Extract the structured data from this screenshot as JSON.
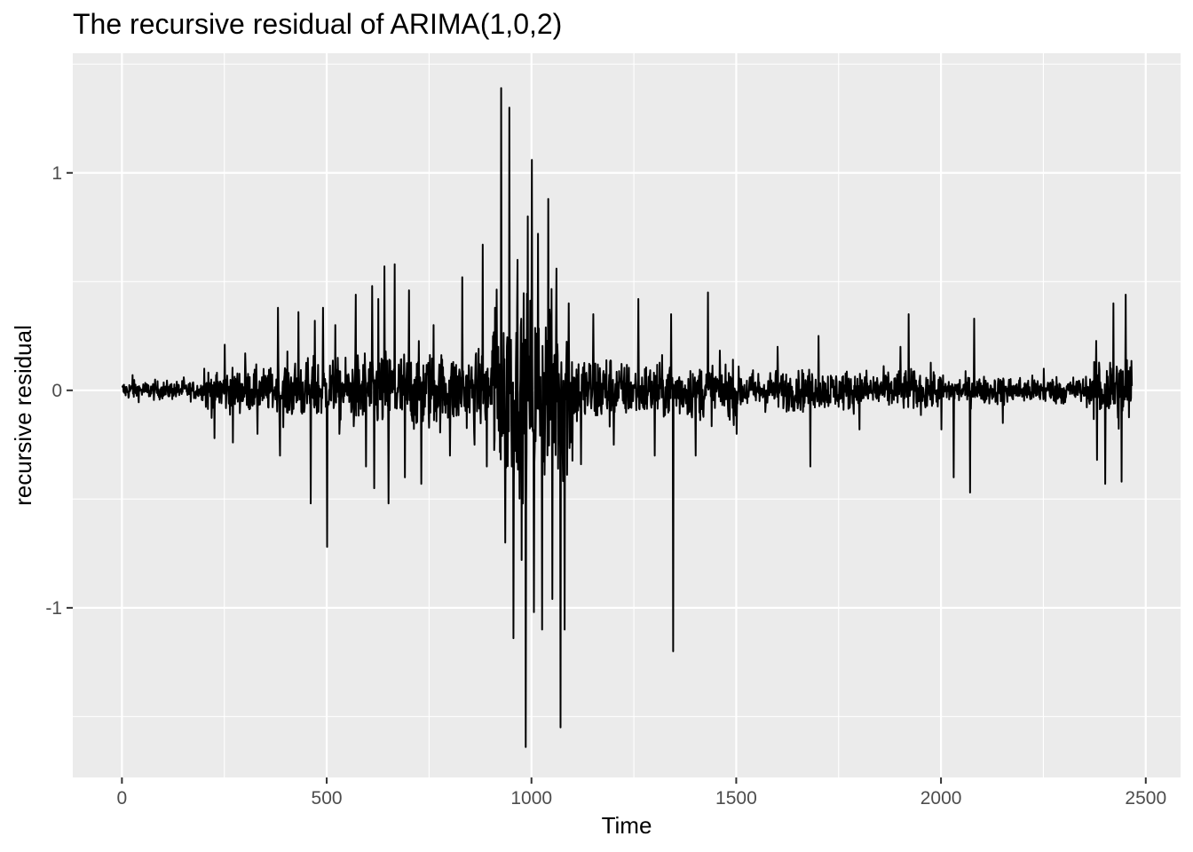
{
  "chart_data": {
    "type": "line",
    "title": "The recursive residual of ARIMA(1,0,2)",
    "xlabel": "Time",
    "ylabel": "recursive residual",
    "xlim": [
      -120,
      2585
    ],
    "ylim": [
      -1.78,
      1.55
    ],
    "x_ticks": [
      0,
      500,
      1000,
      1500,
      2000,
      2500
    ],
    "x_tick_labels": [
      "0",
      "500",
      "1000",
      "1500",
      "2000",
      "2500"
    ],
    "y_ticks": [
      -1,
      0,
      1
    ],
    "y_tick_labels": [
      "-1",
      "0",
      "1"
    ],
    "grid": true,
    "background": "#ebebeb",
    "grid_color": "#ffffff",
    "line_color": "#000000",
    "n_points": 2466,
    "series": [
      {
        "description": "noisy residual series centered at 0; values below are visible extreme spikes (x, y)",
        "spikes": [
          [
            25,
            0.07
          ],
          [
            80,
            0.05
          ],
          [
            150,
            0.06
          ],
          [
            200,
            0.1
          ],
          [
            225,
            -0.22
          ],
          [
            250,
            0.21
          ],
          [
            270,
            -0.24
          ],
          [
            300,
            0.17
          ],
          [
            330,
            -0.2
          ],
          [
            380,
            0.38
          ],
          [
            385,
            -0.3
          ],
          [
            430,
            0.36
          ],
          [
            460,
            -0.52
          ],
          [
            470,
            0.32
          ],
          [
            490,
            0.38
          ],
          [
            500,
            -0.72
          ],
          [
            520,
            0.3
          ],
          [
            530,
            -0.2
          ],
          [
            570,
            0.44
          ],
          [
            595,
            -0.35
          ],
          [
            610,
            0.48
          ],
          [
            615,
            -0.45
          ],
          [
            625,
            0.42
          ],
          [
            640,
            0.57
          ],
          [
            650,
            -0.52
          ],
          [
            665,
            0.58
          ],
          [
            690,
            -0.4
          ],
          [
            700,
            0.46
          ],
          [
            730,
            -0.43
          ],
          [
            760,
            0.3
          ],
          [
            800,
            -0.3
          ],
          [
            830,
            0.52
          ],
          [
            860,
            -0.25
          ],
          [
            880,
            0.67
          ],
          [
            890,
            -0.35
          ],
          [
            910,
            0.38
          ],
          [
            925,
            1.39
          ],
          [
            935,
            -0.7
          ],
          [
            945,
            1.3
          ],
          [
            955,
            -1.14
          ],
          [
            965,
            0.6
          ],
          [
            975,
            -0.78
          ],
          [
            985,
            -1.64
          ],
          [
            990,
            0.8
          ],
          [
            1000,
            1.06
          ],
          [
            1005,
            -1.02
          ],
          [
            1015,
            0.72
          ],
          [
            1025,
            -1.1
          ],
          [
            1040,
            0.88
          ],
          [
            1050,
            -0.96
          ],
          [
            1060,
            0.56
          ],
          [
            1070,
            -1.55
          ],
          [
            1080,
            -1.1
          ],
          [
            1090,
            0.4
          ],
          [
            1120,
            -0.34
          ],
          [
            1150,
            0.35
          ],
          [
            1200,
            -0.25
          ],
          [
            1260,
            0.42
          ],
          [
            1300,
            -0.3
          ],
          [
            1340,
            0.35
          ],
          [
            1345,
            -1.2
          ],
          [
            1400,
            -0.3
          ],
          [
            1430,
            0.45
          ],
          [
            1500,
            -0.2
          ],
          [
            1600,
            0.2
          ],
          [
            1680,
            -0.35
          ],
          [
            1700,
            0.25
          ],
          [
            1800,
            -0.18
          ],
          [
            1900,
            0.2
          ],
          [
            1920,
            0.35
          ],
          [
            2000,
            -0.18
          ],
          [
            2030,
            -0.4
          ],
          [
            2070,
            -0.47
          ],
          [
            2080,
            0.33
          ],
          [
            2150,
            -0.15
          ],
          [
            2250,
            0.1
          ],
          [
            2380,
            -0.32
          ],
          [
            2400,
            -0.43
          ],
          [
            2420,
            0.4
          ],
          [
            2440,
            -0.42
          ],
          [
            2450,
            0.44
          ],
          [
            2466,
            0.02
          ]
        ]
      }
    ]
  }
}
